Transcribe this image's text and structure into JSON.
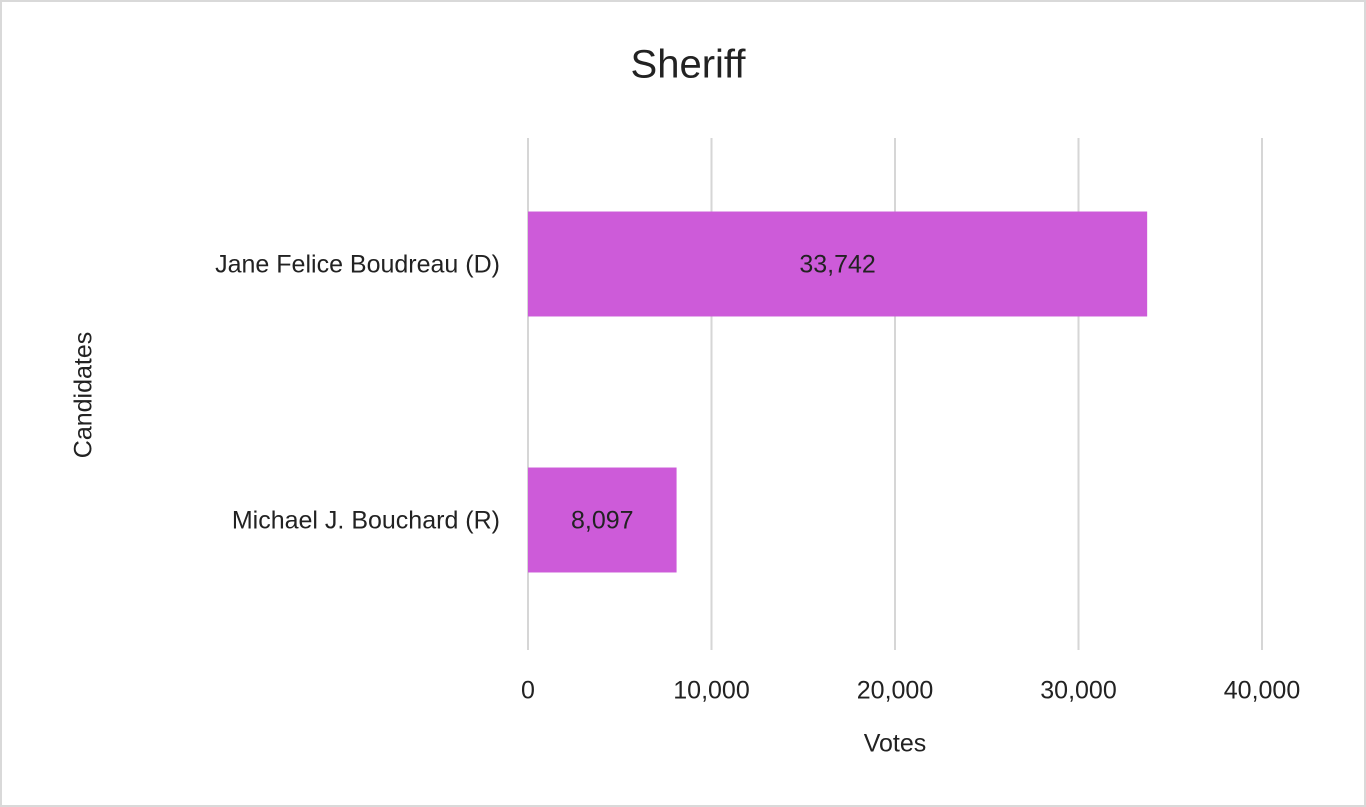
{
  "chart_data": {
    "type": "bar",
    "orientation": "horizontal",
    "title": "Sheriff",
    "categories": [
      "Jane Felice Boudreau (D)",
      "Michael J. Bouchard (R)"
    ],
    "values": [
      33742,
      8097
    ],
    "value_labels": [
      "33,742",
      "8,097"
    ],
    "color": "#cd5bd9",
    "xlabel": "Votes",
    "ylabel": "Candidates",
    "xlim": [
      0,
      40000
    ],
    "xticks": [
      0,
      {
        "value": 10000,
        "label": "10,000"
      },
      {
        "value": 20000,
        "label": "20,000"
      },
      {
        "value": 30000,
        "label": "30,000"
      },
      {
        "value": 40000,
        "label": "40,000"
      }
    ],
    "grid": true
  }
}
